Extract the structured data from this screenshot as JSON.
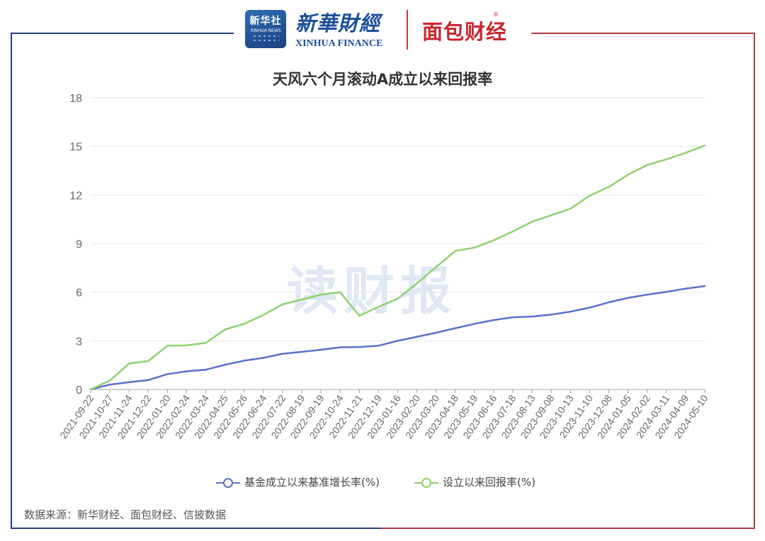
{
  "header": {
    "xinhua_badge_cn": "新华社",
    "xinhua_badge_en": "XINHUA NEWS",
    "xinhua_finance_cn": "新華財經",
    "xinhua_finance_en": "XINHUA FINANCE",
    "mianbao_logo": "面包财经",
    "mianbao_reg": "®"
  },
  "watermark": "读财报",
  "source": "数据来源：新华财经、面包财经、信披数据",
  "colors": {
    "benchmark": "#5b70c9",
    "fund": "#8fd16e",
    "frame_left": "#1f3f7a",
    "frame_right": "#b23a48"
  },
  "chart_data": {
    "type": "line",
    "title": "天风六个月滚动A成立以来回报率",
    "ylim": [
      0,
      18
    ],
    "yticks": [
      0,
      3,
      6,
      9,
      12,
      15,
      18
    ],
    "grid": true,
    "legend_position": "bottom",
    "x_labels": [
      "2021-09-22",
      "2021-10-27",
      "2021-11-24",
      "2021-12-22",
      "2022-01-20",
      "2022-02-24",
      "2022-03-24",
      "2022-04-25",
      "2022-05-26",
      "2022-06-24",
      "2022-07-22",
      "2022-08-19",
      "2022-09-19",
      "2022-10-24",
      "2022-11-21",
      "2022-12-19",
      "2023-01-16",
      "2023-02-20",
      "2023-03-20",
      "2023-04-18",
      "2023-05-19",
      "2023-06-16",
      "2023-07-18",
      "2023-08-13",
      "2023-09-08",
      "2023-10-13",
      "2023-11-10",
      "2023-12-08",
      "2024-01-05",
      "2024-02-02",
      "2024-03-11",
      "2024-04-09",
      "2024-05-10"
    ],
    "series": [
      {
        "name": "基金成立以来基准增长率(%)",
        "values": [
          0,
          0.3,
          0.45,
          0.58,
          0.95,
          1.12,
          1.22,
          1.52,
          1.78,
          1.95,
          2.2,
          2.32,
          2.45,
          2.6,
          2.62,
          2.7,
          3.0,
          3.25,
          3.5,
          3.78,
          4.05,
          4.28,
          4.45,
          4.5,
          4.62,
          4.8,
          5.05,
          5.38,
          5.65,
          5.85,
          6.02,
          6.22,
          6.38
        ]
      },
      {
        "name": "设立以来回报率(%)",
        "values": [
          0,
          0.55,
          1.6,
          1.75,
          2.7,
          2.72,
          2.88,
          3.7,
          4.05,
          4.6,
          5.25,
          5.55,
          5.85,
          6.0,
          4.55,
          5.1,
          5.6,
          6.55,
          7.55,
          8.55,
          8.75,
          9.2,
          9.75,
          10.35,
          10.75,
          11.15,
          11.95,
          12.5,
          13.25,
          13.85,
          14.2,
          14.6,
          15.05
        ]
      }
    ]
  }
}
